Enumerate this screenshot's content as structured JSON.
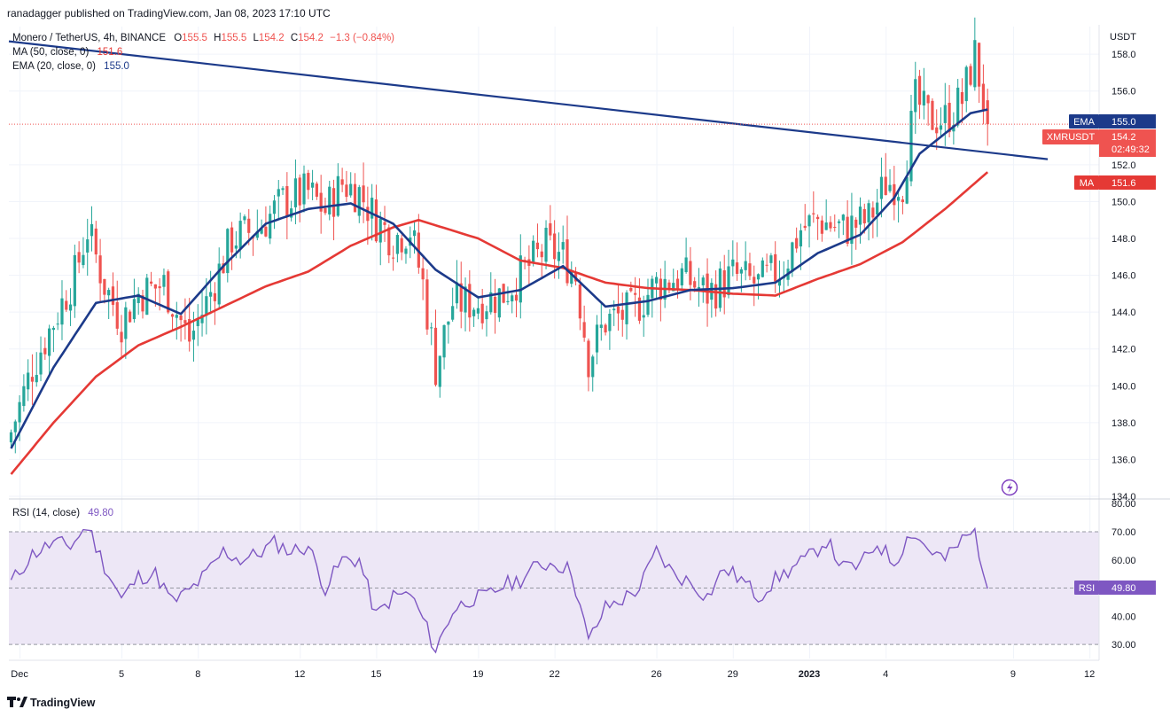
{
  "header": {
    "published": "ranadagger published on TradingView.com, Jan 08, 2023 17:10 UTC"
  },
  "legend": {
    "symbol": "Monero / TetherUS, 4h, BINANCE",
    "o_label": "O",
    "o_value": "155.5",
    "h_label": "H",
    "h_value": "155.5",
    "l_label": "L",
    "l_value": "154.2",
    "c_label": "C",
    "c_value": "154.2",
    "change": "−1.3 (−0.84%)",
    "ma_label": "MA (50, close, 0)",
    "ma_value": "151.6",
    "ema_label": "EMA (20, close, 0)",
    "ema_value": "155.0",
    "rsi_label": "RSI (14, close)",
    "rsi_value": "49.80"
  },
  "price_axis": {
    "unit": "USDT",
    "ticks": [
      "158.0",
      "156.0",
      "152.0",
      "150.0",
      "148.0",
      "146.0",
      "144.0",
      "142.0",
      "140.0",
      "138.0",
      "136.0",
      "134.0"
    ]
  },
  "rsi_axis": {
    "ticks": [
      "80.00",
      "70.00",
      "60.00",
      "50.00",
      "40.00",
      "30.00"
    ]
  },
  "badges": {
    "ema": {
      "label": "EMA",
      "value": "155.0"
    },
    "price": {
      "label": "XMRUSDT",
      "value": "154.2",
      "countdown": "02:49:32"
    },
    "ma": {
      "label": "MA",
      "value": "151.6"
    },
    "rsi": {
      "label": "RSI",
      "value": "49.80"
    }
  },
  "time_axis": {
    "ticks": [
      "Dec",
      "5",
      "8",
      "12",
      "15",
      "19",
      "22",
      "26",
      "29",
      "2023",
      "4",
      "9",
      "12"
    ]
  },
  "footer": {
    "brand": "TradingView"
  },
  "colors": {
    "up": "#26a69a",
    "down": "#ef5350",
    "ema": "#1c3a8a",
    "ma": "#e53935",
    "trendline": "#1c3a8a",
    "rsi": "#7e57c2",
    "rsi_band": "#ede7f6",
    "grid": "#f0f3fa",
    "text": "#131722"
  },
  "chart_data": {
    "type": "candlestick",
    "ylim": [
      134,
      159.5
    ],
    "rsi_ylim": [
      25,
      81
    ],
    "price_ticks": [
      158,
      156,
      152,
      150,
      148,
      146,
      144,
      142,
      140,
      138,
      136,
      134
    ],
    "rsi_ticks": [
      80,
      70,
      60,
      50,
      40,
      30
    ],
    "time_ticks": [
      {
        "label": "Dec",
        "x": 2
      },
      {
        "label": "5",
        "x": 26
      },
      {
        "label": "8",
        "x": 44
      },
      {
        "label": "12",
        "x": 68
      },
      {
        "label": "15",
        "x": 86
      },
      {
        "label": "19",
        "x": 110
      },
      {
        "label": "22",
        "x": 128
      },
      {
        "label": "26",
        "x": 152
      },
      {
        "label": "29",
        "x": 170
      },
      {
        "label": "2023",
        "x": 188
      },
      {
        "label": "4",
        "x": 206
      },
      {
        "label": "9",
        "x": 236
      },
      {
        "label": "12",
        "x": 254
      }
    ],
    "bar_count": 231,
    "last_close": 154.2,
    "last_ema": 155.0,
    "last_ma": 151.6,
    "last_rsi": 49.8,
    "close_keypoints": [
      {
        "x": 0,
        "y": 137.5
      },
      {
        "x": 5,
        "y": 141
      },
      {
        "x": 10,
        "y": 143.5
      },
      {
        "x": 15,
        "y": 146
      },
      {
        "x": 18,
        "y": 148.5
      },
      {
        "x": 22,
        "y": 145.5
      },
      {
        "x": 26,
        "y": 143.5
      },
      {
        "x": 30,
        "y": 145
      },
      {
        "x": 36,
        "y": 145.5
      },
      {
        "x": 42,
        "y": 142.5
      },
      {
        "x": 46,
        "y": 144.5
      },
      {
        "x": 52,
        "y": 148
      },
      {
        "x": 58,
        "y": 148.5
      },
      {
        "x": 64,
        "y": 150
      },
      {
        "x": 70,
        "y": 150.5
      },
      {
        "x": 74,
        "y": 149.5
      },
      {
        "x": 78,
        "y": 151
      },
      {
        "x": 82,
        "y": 150.5
      },
      {
        "x": 86,
        "y": 149
      },
      {
        "x": 90,
        "y": 148
      },
      {
        "x": 94,
        "y": 148.5
      },
      {
        "x": 97,
        "y": 145.5
      },
      {
        "x": 100,
        "y": 141
      },
      {
        "x": 104,
        "y": 144.5
      },
      {
        "x": 110,
        "y": 144.5
      },
      {
        "x": 116,
        "y": 145
      },
      {
        "x": 122,
        "y": 146.5
      },
      {
        "x": 126,
        "y": 147.5
      },
      {
        "x": 130,
        "y": 147
      },
      {
        "x": 133,
        "y": 146
      },
      {
        "x": 136,
        "y": 141.5
      },
      {
        "x": 140,
        "y": 143.5
      },
      {
        "x": 146,
        "y": 144
      },
      {
        "x": 152,
        "y": 145.5
      },
      {
        "x": 158,
        "y": 146
      },
      {
        "x": 164,
        "y": 145
      },
      {
        "x": 170,
        "y": 146
      },
      {
        "x": 176,
        "y": 145.5
      },
      {
        "x": 182,
        "y": 146.5
      },
      {
        "x": 186,
        "y": 148.5
      },
      {
        "x": 190,
        "y": 149
      },
      {
        "x": 196,
        "y": 148.5
      },
      {
        "x": 202,
        "y": 149
      },
      {
        "x": 206,
        "y": 151
      },
      {
        "x": 210,
        "y": 151
      },
      {
        "x": 213,
        "y": 155.5
      },
      {
        "x": 216,
        "y": 154.5
      },
      {
        "x": 220,
        "y": 154.5
      },
      {
        "x": 224,
        "y": 155.5
      },
      {
        "x": 227,
        "y": 158
      },
      {
        "x": 230,
        "y": 154.2
      }
    ],
    "ema_keypoints": [
      {
        "x": 0,
        "y": 136.6
      },
      {
        "x": 10,
        "y": 141
      },
      {
        "x": 20,
        "y": 144.5
      },
      {
        "x": 30,
        "y": 144.9
      },
      {
        "x": 40,
        "y": 143.9
      },
      {
        "x": 50,
        "y": 146.5
      },
      {
        "x": 60,
        "y": 148.8
      },
      {
        "x": 70,
        "y": 149.6
      },
      {
        "x": 80,
        "y": 149.9
      },
      {
        "x": 90,
        "y": 148.8
      },
      {
        "x": 100,
        "y": 146.3
      },
      {
        "x": 110,
        "y": 144.8
      },
      {
        "x": 120,
        "y": 145.2
      },
      {
        "x": 130,
        "y": 146.5
      },
      {
        "x": 140,
        "y": 144.3
      },
      {
        "x": 150,
        "y": 144.6
      },
      {
        "x": 160,
        "y": 145.2
      },
      {
        "x": 170,
        "y": 145.3
      },
      {
        "x": 180,
        "y": 145.6
      },
      {
        "x": 190,
        "y": 147.2
      },
      {
        "x": 200,
        "y": 148.2
      },
      {
        "x": 208,
        "y": 150.2
      },
      {
        "x": 214,
        "y": 152.6
      },
      {
        "x": 220,
        "y": 153.7
      },
      {
        "x": 226,
        "y": 154.8
      },
      {
        "x": 230,
        "y": 155.0
      }
    ],
    "ma_keypoints": [
      {
        "x": 0,
        "y": 135.2
      },
      {
        "x": 10,
        "y": 138
      },
      {
        "x": 20,
        "y": 140.5
      },
      {
        "x": 30,
        "y": 142.2
      },
      {
        "x": 40,
        "y": 143.2
      },
      {
        "x": 50,
        "y": 144.3
      },
      {
        "x": 60,
        "y": 145.4
      },
      {
        "x": 70,
        "y": 146.2
      },
      {
        "x": 80,
        "y": 147.6
      },
      {
        "x": 90,
        "y": 148.6
      },
      {
        "x": 96,
        "y": 149
      },
      {
        "x": 110,
        "y": 148
      },
      {
        "x": 120,
        "y": 146.8
      },
      {
        "x": 130,
        "y": 146.4
      },
      {
        "x": 140,
        "y": 145.6
      },
      {
        "x": 150,
        "y": 145.3
      },
      {
        "x": 160,
        "y": 145.2
      },
      {
        "x": 170,
        "y": 145
      },
      {
        "x": 180,
        "y": 144.9
      },
      {
        "x": 190,
        "y": 145.8
      },
      {
        "x": 200,
        "y": 146.6
      },
      {
        "x": 210,
        "y": 147.8
      },
      {
        "x": 220,
        "y": 149.6
      },
      {
        "x": 230,
        "y": 151.6
      }
    ],
    "trendline": [
      {
        "x": 0,
        "y": 158.7
      },
      {
        "x": 245,
        "y": 152.3
      }
    ],
    "rsi_keypoints": [
      {
        "x": 0,
        "y": 52
      },
      {
        "x": 5,
        "y": 62
      },
      {
        "x": 10,
        "y": 66
      },
      {
        "x": 14,
        "y": 65
      },
      {
        "x": 18,
        "y": 72
      },
      {
        "x": 22,
        "y": 58
      },
      {
        "x": 26,
        "y": 46
      },
      {
        "x": 30,
        "y": 54
      },
      {
        "x": 34,
        "y": 55
      },
      {
        "x": 38,
        "y": 45
      },
      {
        "x": 42,
        "y": 49
      },
      {
        "x": 46,
        "y": 55
      },
      {
        "x": 50,
        "y": 63
      },
      {
        "x": 54,
        "y": 60
      },
      {
        "x": 58,
        "y": 62
      },
      {
        "x": 62,
        "y": 66
      },
      {
        "x": 66,
        "y": 63
      },
      {
        "x": 70,
        "y": 65
      },
      {
        "x": 74,
        "y": 50
      },
      {
        "x": 78,
        "y": 60
      },
      {
        "x": 82,
        "y": 60
      },
      {
        "x": 86,
        "y": 40
      },
      {
        "x": 90,
        "y": 47
      },
      {
        "x": 94,
        "y": 48
      },
      {
        "x": 97,
        "y": 39
      },
      {
        "x": 100,
        "y": 28
      },
      {
        "x": 104,
        "y": 42
      },
      {
        "x": 108,
        "y": 46
      },
      {
        "x": 112,
        "y": 47
      },
      {
        "x": 116,
        "y": 51
      },
      {
        "x": 120,
        "y": 53
      },
      {
        "x": 124,
        "y": 58
      },
      {
        "x": 128,
        "y": 59
      },
      {
        "x": 132,
        "y": 56
      },
      {
        "x": 136,
        "y": 31
      },
      {
        "x": 140,
        "y": 43
      },
      {
        "x": 144,
        "y": 46
      },
      {
        "x": 148,
        "y": 50
      },
      {
        "x": 152,
        "y": 63
      },
      {
        "x": 156,
        "y": 55
      },
      {
        "x": 160,
        "y": 52
      },
      {
        "x": 164,
        "y": 47
      },
      {
        "x": 168,
        "y": 57
      },
      {
        "x": 172,
        "y": 53
      },
      {
        "x": 176,
        "y": 47
      },
      {
        "x": 180,
        "y": 53
      },
      {
        "x": 184,
        "y": 57
      },
      {
        "x": 188,
        "y": 61
      },
      {
        "x": 192,
        "y": 67
      },
      {
        "x": 196,
        "y": 57
      },
      {
        "x": 200,
        "y": 58
      },
      {
        "x": 204,
        "y": 66
      },
      {
        "x": 208,
        "y": 59
      },
      {
        "x": 212,
        "y": 70
      },
      {
        "x": 216,
        "y": 64
      },
      {
        "x": 220,
        "y": 60
      },
      {
        "x": 224,
        "y": 67
      },
      {
        "x": 227,
        "y": 70
      },
      {
        "x": 230,
        "y": 49.8
      }
    ]
  }
}
